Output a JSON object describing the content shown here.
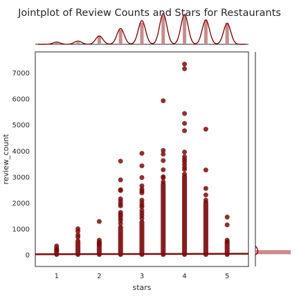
{
  "chart_data": {
    "type": "scatter",
    "title": "Jointplot of Review Counts and Stars for Restaurants",
    "xlabel": "stars",
    "ylabel": "review_count",
    "xlim": [
      0.5,
      5.5
    ],
    "ylim": [
      -450,
      7800
    ],
    "xticks": [
      1,
      2,
      3,
      4,
      5
    ],
    "yticks": [
      0,
      1000,
      2000,
      3000,
      4000,
      5000,
      6000,
      7000
    ],
    "grid": false,
    "color": "#7b0c0c",
    "hist_color": "#c88c8c",
    "regression_line": {
      "x": [
        0.5,
        5.5
      ],
      "y": [
        20,
        40
      ]
    },
    "points": {
      "x_values": [
        1,
        1.5,
        2,
        2.5,
        3,
        3.5,
        4,
        4.5,
        5
      ],
      "max_review_count": [
        340,
        1000,
        1280,
        3600,
        3900,
        5920,
        7330,
        4830,
        1450
      ],
      "dense_column_top": [
        300,
        620,
        560,
        1150,
        1350,
        2800,
        3100,
        2100,
        560
      ],
      "outliers": [
        [
          1,
          340
        ],
        [
          1,
          250
        ],
        [
          1,
          180
        ],
        [
          1.5,
          1000
        ],
        [
          1.5,
          900
        ],
        [
          1.5,
          760
        ],
        [
          1.5,
          680
        ],
        [
          2,
          1280
        ],
        [
          2,
          560
        ],
        [
          2,
          480
        ],
        [
          2,
          390
        ],
        [
          2.5,
          3600
        ],
        [
          2.5,
          2880
        ],
        [
          2.5,
          2500
        ],
        [
          2.5,
          2470
        ],
        [
          2.5,
          2150
        ],
        [
          2.5,
          2050
        ],
        [
          2.5,
          1950
        ],
        [
          2.5,
          1880
        ],
        [
          2.5,
          1630
        ],
        [
          2.5,
          1560
        ],
        [
          2.5,
          1490
        ],
        [
          2.5,
          1400
        ],
        [
          2.5,
          1310
        ],
        [
          2.5,
          1200
        ],
        [
          3,
          3900
        ],
        [
          3,
          3420
        ],
        [
          3,
          2970
        ],
        [
          3,
          2650
        ],
        [
          3,
          2520
        ],
        [
          3,
          2450
        ],
        [
          3,
          2380
        ],
        [
          3,
          2100
        ],
        [
          3,
          2000
        ],
        [
          3,
          1900
        ],
        [
          3,
          1840
        ],
        [
          3,
          1700
        ],
        [
          3,
          1600
        ],
        [
          3,
          1500
        ],
        [
          3,
          1400
        ],
        [
          3.5,
          5920
        ],
        [
          3.5,
          4010
        ],
        [
          3.5,
          3870
        ],
        [
          3.5,
          3620
        ],
        [
          3.5,
          3270
        ],
        [
          3.5,
          3000
        ],
        [
          3.5,
          2960
        ],
        [
          3.5,
          2800
        ],
        [
          4,
          7330
        ],
        [
          4,
          7150
        ],
        [
          4,
          5430
        ],
        [
          4,
          5050
        ],
        [
          4,
          4770
        ],
        [
          4,
          3950
        ],
        [
          4,
          3770
        ],
        [
          4,
          3670
        ],
        [
          4,
          3580
        ],
        [
          4,
          3470
        ],
        [
          4,
          3360
        ],
        [
          4,
          3280
        ],
        [
          4,
          3100
        ],
        [
          4.5,
          4830
        ],
        [
          4.5,
          3260
        ],
        [
          4.5,
          2550
        ],
        [
          4.5,
          2300
        ],
        [
          4.5,
          2100
        ],
        [
          5,
          1450
        ],
        [
          5,
          1150
        ],
        [
          5,
          560
        ],
        [
          5,
          500
        ]
      ]
    },
    "x_marginal": {
      "bins": [
        1,
        1.5,
        2,
        2.5,
        3,
        3.5,
        4,
        4.5,
        5
      ],
      "relative_heights": [
        0.04,
        0.06,
        0.24,
        0.41,
        0.6,
        0.8,
        0.8,
        0.67,
        0.6
      ],
      "kde_peak_heights": [
        0.06,
        0.09,
        0.23,
        0.44,
        0.66,
        0.85,
        0.83,
        0.68,
        0.58
      ]
    },
    "y_marginal": {
      "description_free": true,
      "dominant_bin_value": 100,
      "dominant_bin_relative_length": 1.0
    }
  }
}
